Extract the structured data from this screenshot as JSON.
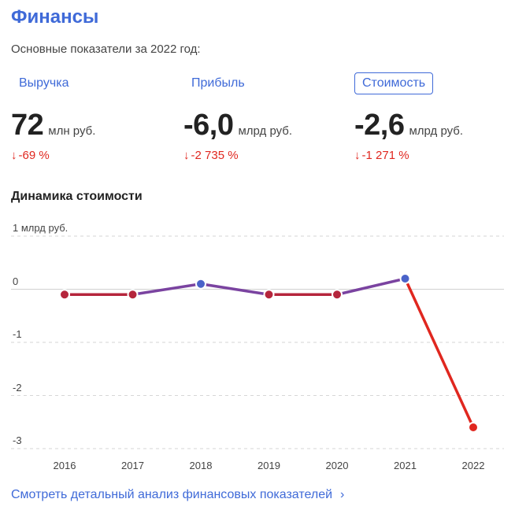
{
  "header": {
    "title": "Финансы",
    "subtitle": "Основные показатели за 2022 год:"
  },
  "metrics": [
    {
      "label": "Выручка",
      "value": "72",
      "unit": "млн руб.",
      "change": "-69 %",
      "arrow": "↓",
      "active": false
    },
    {
      "label": "Прибыль",
      "value": "-6,0",
      "unit": "млрд руб.",
      "change": "-2 735 %",
      "arrow": "↓",
      "active": false
    },
    {
      "label": "Стоимость",
      "value": "-2,6",
      "unit": "млрд руб.",
      "change": "-1 271 %",
      "arrow": "↓",
      "active": true
    }
  ],
  "section_title": "Динамика стоимости",
  "colors": {
    "accent": "#3f6ad8",
    "negative": "#e0271f",
    "line_low": "#b5253c",
    "line_high": "#4a63c9"
  },
  "chart_data": {
    "type": "line",
    "x": [
      "2016",
      "2017",
      "2018",
      "2019",
      "2020",
      "2021",
      "2022"
    ],
    "series": [
      {
        "values": [
          -0.1,
          -0.1,
          0.1,
          -0.1,
          -0.1,
          0.2,
          -2.6
        ]
      }
    ],
    "ylim": [
      -3,
      1
    ],
    "yticks": [
      1,
      0,
      -1,
      -2,
      -3
    ],
    "ytick_labels": [
      "1 млрд руб.",
      "0",
      "-1",
      "-2",
      "-3"
    ],
    "grid": true
  },
  "footer": {
    "link_label": "Смотреть детальный анализ финансовых показателей",
    "link_icon": "chevron-right-icon"
  }
}
